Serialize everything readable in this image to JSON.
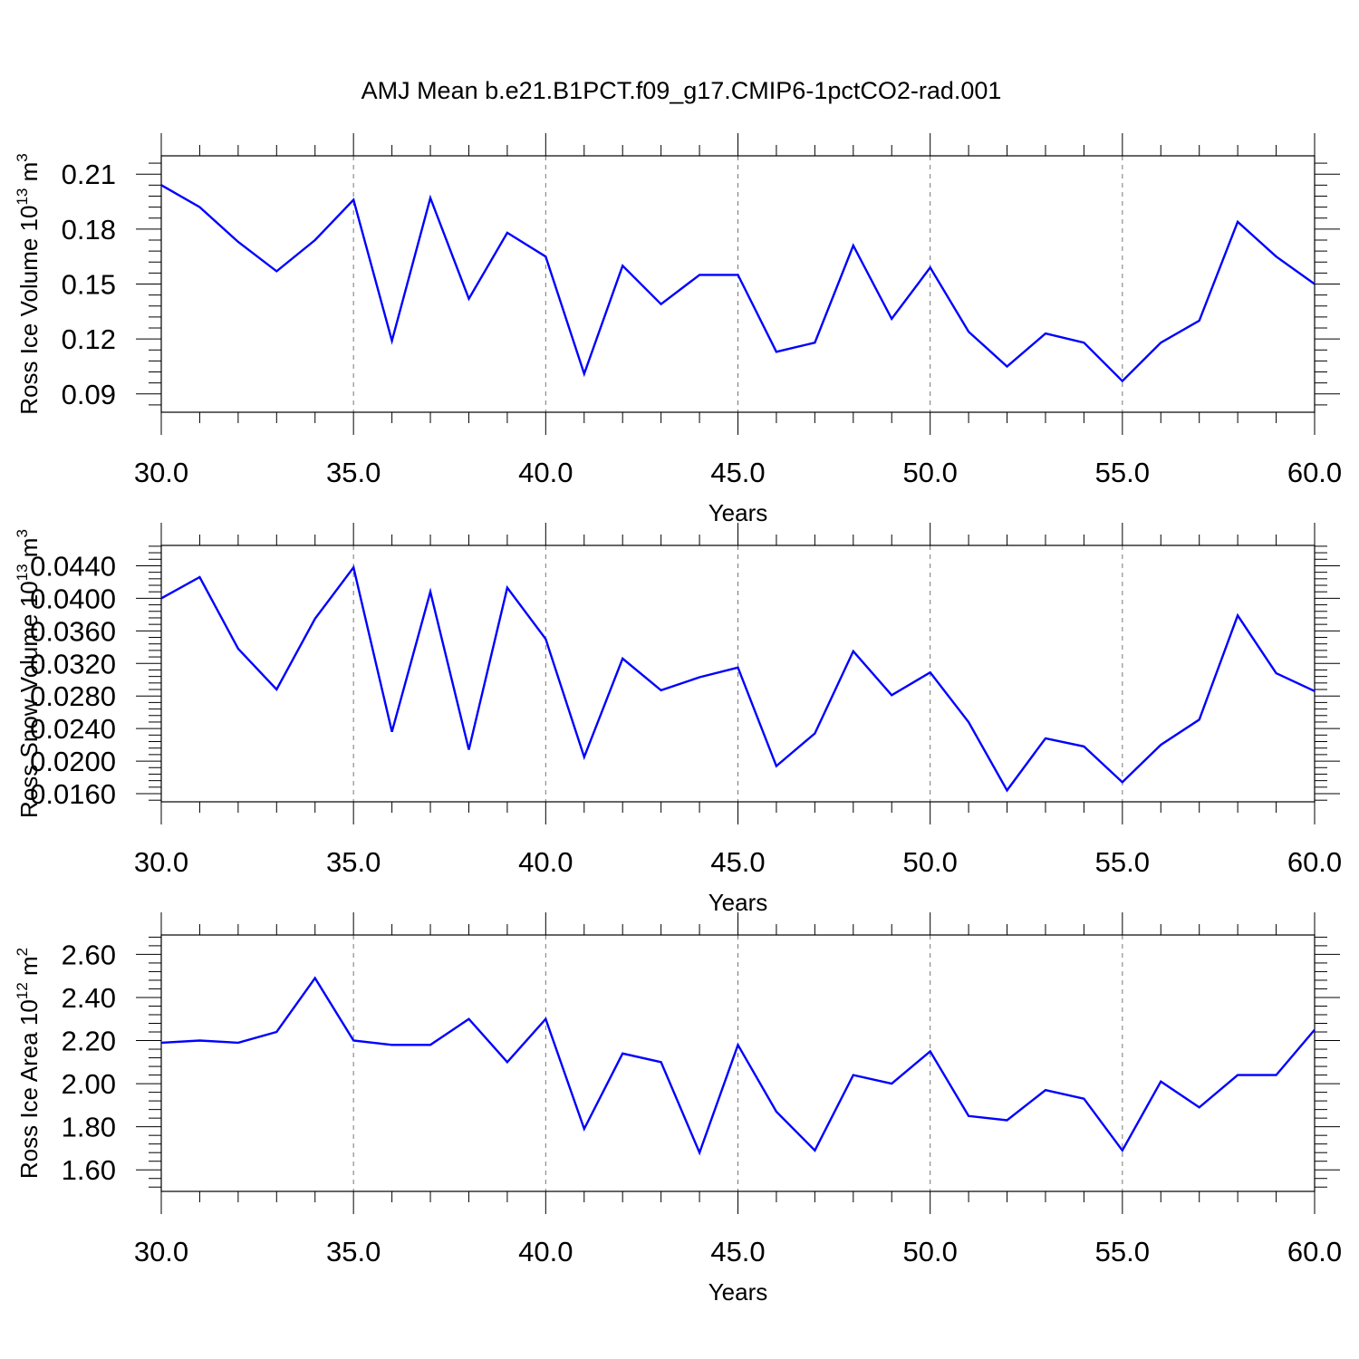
{
  "title": "AMJ Mean b.e21.B1PCT.f09_g17.CMIP6-1pctCO2-rad.001",
  "colors": {
    "line": "#0000ff",
    "grid": "#777777",
    "axis": "#000000"
  },
  "chart_data": [
    {
      "type": "line",
      "xlabel": "Years",
      "ylabel": "Ross Ice Volume 10",
      "ylabel_sup1": "13",
      "ylabel_unit": " m",
      "ylabel_sup2": "3",
      "xlim": [
        30,
        60
      ],
      "ylim": [
        0.08,
        0.22
      ],
      "xticks": [
        30,
        35,
        40,
        45,
        50,
        55,
        60
      ],
      "xtick_labels": [
        "30.0",
        "35.0",
        "40.0",
        "45.0",
        "50.0",
        "55.0",
        "60.0"
      ],
      "yticks": [
        0.09,
        0.12,
        0.15,
        0.18,
        0.21
      ],
      "ytick_labels": [
        "0.09",
        "0.12",
        "0.15",
        "0.18",
        "0.21"
      ],
      "grid": "vertical dashed at major x ticks",
      "series": [
        {
          "x": [
            30,
            31,
            32,
            33,
            34,
            35,
            36,
            37,
            38,
            39,
            40,
            41,
            42,
            43,
            44,
            45,
            46,
            47,
            48,
            49,
            50,
            51,
            52,
            53,
            54,
            55,
            56,
            57,
            58,
            59,
            60
          ],
          "values": [
            0.204,
            0.192,
            0.173,
            0.157,
            0.174,
            0.196,
            0.119,
            0.197,
            0.142,
            0.178,
            0.165,
            0.101,
            0.16,
            0.139,
            0.155,
            0.155,
            0.113,
            0.118,
            0.171,
            0.131,
            0.159,
            0.124,
            0.105,
            0.123,
            0.118,
            0.097,
            0.118,
            0.13,
            0.184,
            0.165,
            0.15
          ]
        }
      ]
    },
    {
      "type": "line",
      "xlabel": "Years",
      "ylabel": "Ross Snow Volume 10",
      "ylabel_sup1": "13",
      "ylabel_unit": " m",
      "ylabel_sup2": "3",
      "xlim": [
        30,
        60
      ],
      "ylim": [
        0.015,
        0.0465
      ],
      "xticks": [
        30,
        35,
        40,
        45,
        50,
        55,
        60
      ],
      "xtick_labels": [
        "30.0",
        "35.0",
        "40.0",
        "45.0",
        "50.0",
        "55.0",
        "60.0"
      ],
      "yticks": [
        0.016,
        0.02,
        0.024,
        0.028,
        0.032,
        0.036,
        0.04,
        0.044
      ],
      "ytick_labels": [
        "0.0160",
        "0.0200",
        "0.0240",
        "0.0280",
        "0.0320",
        "0.0360",
        "0.0400",
        "0.0440"
      ],
      "grid": "vertical dashed at major x ticks",
      "series": [
        {
          "x": [
            30,
            31,
            32,
            33,
            34,
            35,
            36,
            37,
            38,
            39,
            40,
            41,
            42,
            43,
            44,
            45,
            46,
            47,
            48,
            49,
            50,
            51,
            52,
            53,
            54,
            55,
            56,
            57,
            58,
            59,
            60
          ],
          "values": [
            0.04,
            0.0426,
            0.0338,
            0.0288,
            0.0375,
            0.0438,
            0.0236,
            0.0408,
            0.0214,
            0.0413,
            0.035,
            0.0205,
            0.0326,
            0.0287,
            0.0303,
            0.0315,
            0.0194,
            0.0234,
            0.0335,
            0.0281,
            0.0309,
            0.0248,
            0.0164,
            0.0228,
            0.0218,
            0.0174,
            0.022,
            0.0251,
            0.0379,
            0.0308,
            0.0286
          ]
        }
      ]
    },
    {
      "type": "line",
      "xlabel": "Years",
      "ylabel": "Ross Ice Area 10",
      "ylabel_sup1": "12",
      "ylabel_unit": " m",
      "ylabel_sup2": "2",
      "xlim": [
        30,
        60
      ],
      "ylim": [
        1.5,
        2.69
      ],
      "xticks": [
        30,
        35,
        40,
        45,
        50,
        55,
        60
      ],
      "xtick_labels": [
        "30.0",
        "35.0",
        "40.0",
        "45.0",
        "50.0",
        "55.0",
        "60.0"
      ],
      "yticks": [
        1.6,
        1.8,
        2.0,
        2.2,
        2.4,
        2.6
      ],
      "ytick_labels": [
        "1.60",
        "1.80",
        "2.00",
        "2.20",
        "2.40",
        "2.60"
      ],
      "grid": "vertical dashed at major x ticks",
      "series": [
        {
          "x": [
            30,
            31,
            32,
            33,
            34,
            35,
            36,
            37,
            38,
            39,
            40,
            41,
            42,
            43,
            44,
            45,
            46,
            47,
            48,
            49,
            50,
            51,
            52,
            53,
            54,
            55,
            56,
            57,
            58,
            59,
            60
          ],
          "values": [
            2.19,
            2.2,
            2.19,
            2.24,
            2.49,
            2.2,
            2.18,
            2.18,
            2.3,
            2.1,
            2.3,
            1.79,
            2.14,
            2.1,
            1.68,
            2.18,
            1.87,
            1.69,
            2.04,
            2.0,
            2.15,
            1.85,
            1.83,
            1.97,
            1.93,
            1.69,
            2.01,
            1.89,
            2.04,
            2.04,
            2.25
          ]
        }
      ]
    }
  ]
}
